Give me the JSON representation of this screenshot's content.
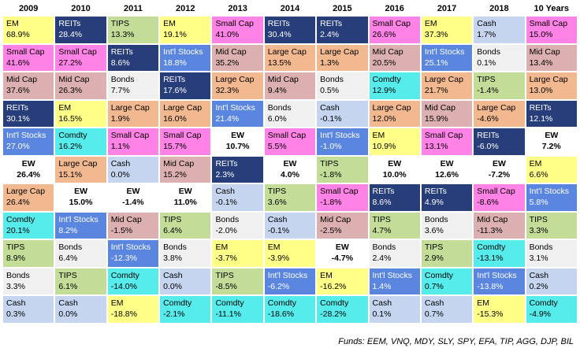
{
  "footer": "Funds: EEM, VNQ, MDY, SLY, SPY, EFA, TIP, AGG, DJP, BIL",
  "colors": {
    "EM": "#ffff88",
    "REITs": "#283e7a",
    "TIPS": "#c3dd98",
    "Small Cap": "#ff82e6",
    "Mid Cap": "#dcb0b0",
    "Large Cap": "#f2b990",
    "Int'l Stocks": "#5b86e0",
    "Bonds": "#f0f0f0",
    "Cash": "#c5d5ef",
    "Comdty": "#56ecec",
    "EW": "#ffffff"
  },
  "chart_data": {
    "type": "table",
    "columns": [
      "2009",
      "2010",
      "2011",
      "2012",
      "2013",
      "2014",
      "2015",
      "2016",
      "2017",
      "2018",
      "10 Years"
    ],
    "rows": [
      [
        [
          "EM",
          "68.9%"
        ],
        [
          "REITs",
          "28.4%"
        ],
        [
          "TIPS",
          "13.3%"
        ],
        [
          "EM",
          "19.1%"
        ],
        [
          "Small Cap",
          "41.0%"
        ],
        [
          "REITs",
          "30.4%"
        ],
        [
          "REITs",
          "2.4%"
        ],
        [
          "Small Cap",
          "26.6%"
        ],
        [
          "EM",
          "37.3%"
        ],
        [
          "Cash",
          "1.7%"
        ],
        [
          "Small Cap",
          "15.0%"
        ]
      ],
      [
        [
          "Small Cap",
          "41.6%"
        ],
        [
          "Small Cap",
          "27.2%"
        ],
        [
          "REITs",
          "8.6%"
        ],
        [
          "Int'l Stocks",
          "18.8%"
        ],
        [
          "Mid Cap",
          "35.2%"
        ],
        [
          "Large Cap",
          "13.5%"
        ],
        [
          "Large Cap",
          "1.3%"
        ],
        [
          "Mid Cap",
          "20.5%"
        ],
        [
          "Int'l Stocks",
          "25.1%"
        ],
        [
          "Bonds",
          "0.1%"
        ],
        [
          "Mid Cap",
          "13.4%"
        ]
      ],
      [
        [
          "Mid Cap",
          "37.6%"
        ],
        [
          "Mid Cap",
          "26.3%"
        ],
        [
          "Bonds",
          "7.7%"
        ],
        [
          "REITs",
          "17.6%"
        ],
        [
          "Large Cap",
          "32.3%"
        ],
        [
          "Mid Cap",
          "9.4%"
        ],
        [
          "Bonds",
          "0.5%"
        ],
        [
          "Comdty",
          "12.9%"
        ],
        [
          "Large Cap",
          "21.7%"
        ],
        [
          "TIPS",
          "-1.4%"
        ],
        [
          "Large Cap",
          "13.0%"
        ]
      ],
      [
        [
          "REITs",
          "30.1%"
        ],
        [
          "EM",
          "16.5%"
        ],
        [
          "Large Cap",
          "1.9%"
        ],
        [
          "Large Cap",
          "16.0%"
        ],
        [
          "Int'l Stocks",
          "21.4%"
        ],
        [
          "Bonds",
          "6.0%"
        ],
        [
          "Cash",
          "-0.1%"
        ],
        [
          "Large Cap",
          "12.0%"
        ],
        [
          "Mid Cap",
          "15.9%"
        ],
        [
          "Large Cap",
          "-4.6%"
        ],
        [
          "REITs",
          "12.1%"
        ]
      ],
      [
        [
          "Int'l Stocks",
          "27.0%"
        ],
        [
          "Comdty",
          "16.2%"
        ],
        [
          "Small Cap",
          "1.1%"
        ],
        [
          "Small Cap",
          "15.7%"
        ],
        [
          "EW",
          "10.7%"
        ],
        [
          "Small Cap",
          "5.5%"
        ],
        [
          "Int'l Stocks",
          "-1.0%"
        ],
        [
          "EM",
          "10.9%"
        ],
        [
          "Small Cap",
          "13.1%"
        ],
        [
          "REITs",
          "-6.0%"
        ],
        [
          "EW",
          "7.2%"
        ]
      ],
      [
        [
          "EW",
          "26.4%"
        ],
        [
          "Large Cap",
          "15.1%"
        ],
        [
          "Cash",
          "0.0%"
        ],
        [
          "Mid Cap",
          "15.2%"
        ],
        [
          "REITs",
          "2.3%"
        ],
        [
          "EW",
          "4.0%"
        ],
        [
          "TIPS",
          "-1.8%"
        ],
        [
          "EW",
          "10.0%"
        ],
        [
          "EW",
          "12.6%"
        ],
        [
          "EW",
          "-7.2%"
        ],
        [
          "EM",
          "6.6%"
        ]
      ],
      [
        [
          "Large Cap",
          "26.4%"
        ],
        [
          "EW",
          "15.0%"
        ],
        [
          "EW",
          "-1.4%"
        ],
        [
          "EW",
          "11.0%"
        ],
        [
          "Cash",
          "-0.1%"
        ],
        [
          "TIPS",
          "3.6%"
        ],
        [
          "Small Cap",
          "-1.8%"
        ],
        [
          "REITs",
          "8.6%"
        ],
        [
          "REITs",
          "4.9%"
        ],
        [
          "Small Cap",
          "-8.6%"
        ],
        [
          "Int'l Stocks",
          "5.8%"
        ]
      ],
      [
        [
          "Comdty",
          "20.1%"
        ],
        [
          "Int'l Stocks",
          "8.2%"
        ],
        [
          "Mid Cap",
          "-1.5%"
        ],
        [
          "TIPS",
          "6.4%"
        ],
        [
          "Bonds",
          "-2.0%"
        ],
        [
          "Cash",
          "-0.1%"
        ],
        [
          "Mid Cap",
          "-2.5%"
        ],
        [
          "TIPS",
          "4.7%"
        ],
        [
          "Bonds",
          "3.6%"
        ],
        [
          "Mid Cap",
          "-11.3%"
        ],
        [
          "TIPS",
          "3.3%"
        ]
      ],
      [
        [
          "TIPS",
          "8.9%"
        ],
        [
          "Bonds",
          "6.4%"
        ],
        [
          "Int'l Stocks",
          "-12.3%"
        ],
        [
          "Bonds",
          "3.8%"
        ],
        [
          "EM",
          "-3.7%"
        ],
        [
          "EM",
          "-3.9%"
        ],
        [
          "EW",
          "-4.7%"
        ],
        [
          "Bonds",
          "2.4%"
        ],
        [
          "TIPS",
          "2.9%"
        ],
        [
          "Comdty",
          "-13.1%"
        ],
        [
          "Bonds",
          "3.1%"
        ]
      ],
      [
        [
          "Bonds",
          "3.3%"
        ],
        [
          "TIPS",
          "6.1%"
        ],
        [
          "Comdty",
          "-14.0%"
        ],
        [
          "Cash",
          "0.0%"
        ],
        [
          "TIPS",
          "-8.5%"
        ],
        [
          "Int'l Stocks",
          "-6.2%"
        ],
        [
          "EM",
          "-16.2%"
        ],
        [
          "Int'l Stocks",
          "1.4%"
        ],
        [
          "Comdty",
          "0.7%"
        ],
        [
          "Int'l Stocks",
          "-13.8%"
        ],
        [
          "Cash",
          "0.2%"
        ]
      ],
      [
        [
          "Cash",
          "0.3%"
        ],
        [
          "Cash",
          "0.0%"
        ],
        [
          "EM",
          "-18.8%"
        ],
        [
          "Comdty",
          "-2.1%"
        ],
        [
          "Comdty",
          "-11.1%"
        ],
        [
          "Comdty",
          "-18.6%"
        ],
        [
          "Comdty",
          "-28.2%"
        ],
        [
          "Cash",
          "0.1%"
        ],
        [
          "Cash",
          "0.7%"
        ],
        [
          "EM",
          "-15.3%"
        ],
        [
          "Comdty",
          "-4.9%"
        ]
      ]
    ]
  }
}
